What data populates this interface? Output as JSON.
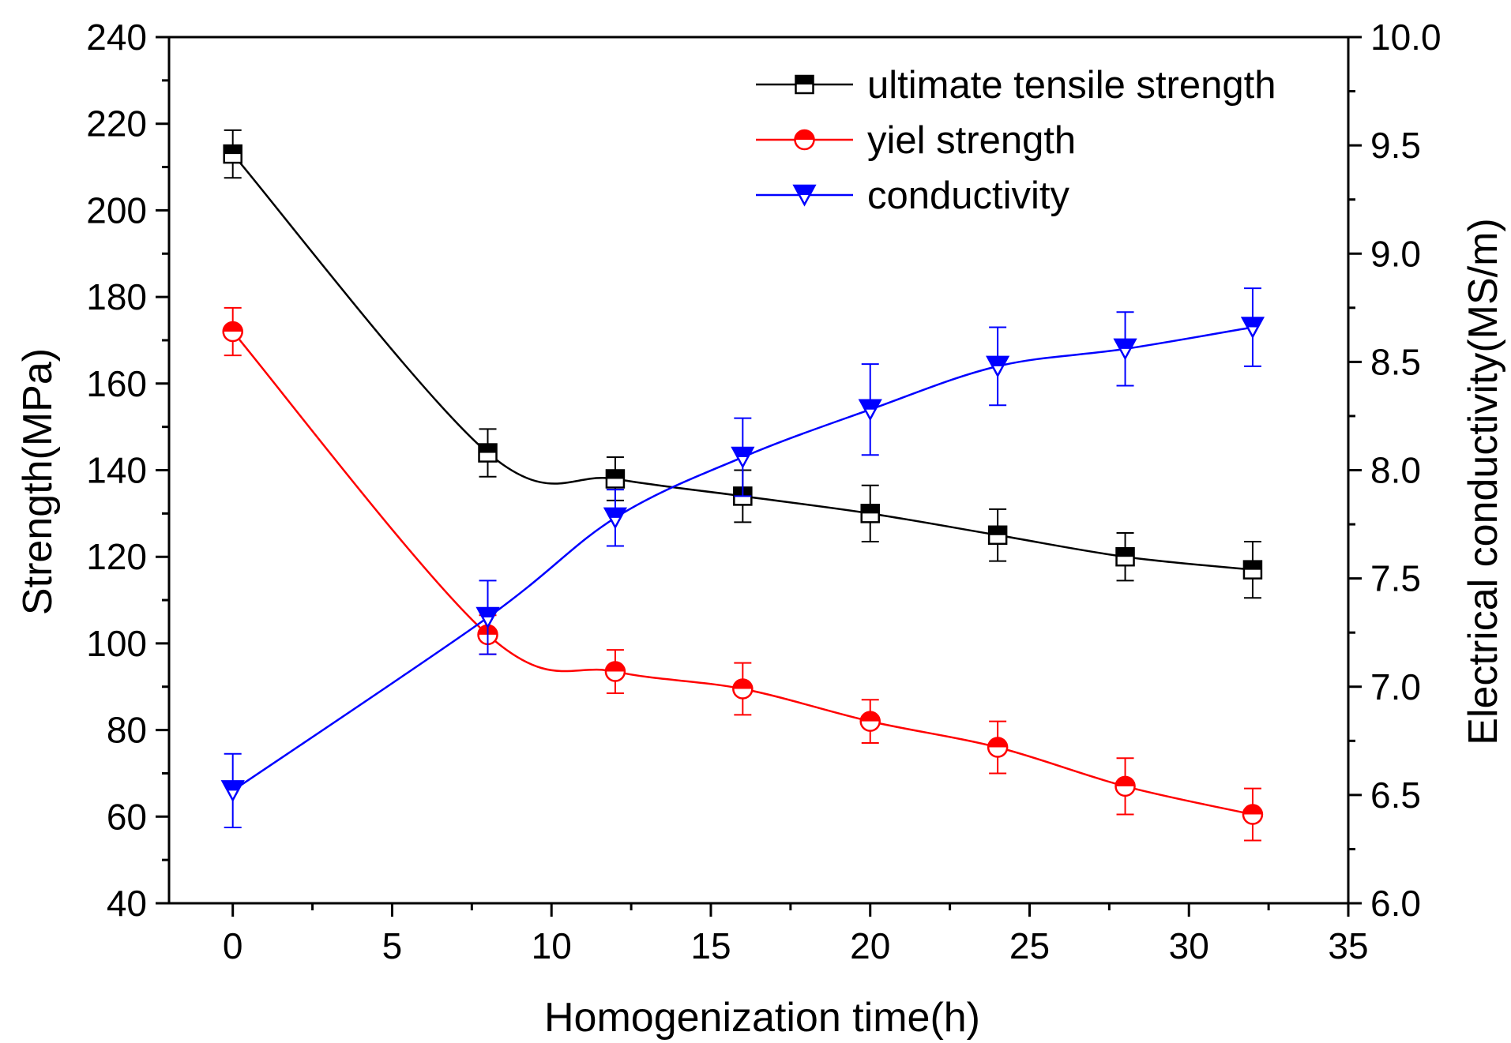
{
  "chart_data": {
    "type": "line",
    "title": "",
    "xlabel": "Homogenization time(h)",
    "ylabel": "Strength(MPa)",
    "y2label": "Electrical conductivity(MS/m)",
    "xlim": [
      -2,
      35
    ],
    "ylim": [
      40,
      240
    ],
    "y2lim": [
      6.0,
      10.0
    ],
    "x_ticks": [
      0,
      5,
      10,
      15,
      20,
      25,
      30,
      35
    ],
    "y_ticks": [
      40,
      60,
      80,
      100,
      120,
      140,
      160,
      180,
      200,
      220,
      240
    ],
    "y2_ticks": [
      "6.0",
      "6.5",
      "7.0",
      "7.5",
      "8.0",
      "8.5",
      "9.0",
      "9.5",
      "10.0"
    ],
    "x_tick_labels": [
      "0",
      "5",
      "10",
      "15",
      "20",
      "25",
      "30",
      "35"
    ],
    "y_tick_labels": [
      "40",
      "60",
      "80",
      "100",
      "120",
      "140",
      "160",
      "180",
      "200",
      "220",
      "240"
    ],
    "legend_position": "top-right",
    "grid": false,
    "series": [
      {
        "name": "ultimate tensile strength",
        "axis": "left",
        "color": "#000000",
        "marker": "square",
        "x": [
          0,
          8,
          12,
          16,
          20,
          24,
          28,
          32
        ],
        "values": [
          213,
          144,
          138,
          134,
          130,
          125,
          120,
          117
        ],
        "errors": [
          5.5,
          5.5,
          5,
          6,
          6.5,
          6,
          5.5,
          6.5
        ]
      },
      {
        "name": "yiel strength",
        "axis": "left",
        "color": "#ff0000",
        "marker": "circle",
        "x": [
          0,
          8,
          12,
          16,
          20,
          24,
          28,
          32
        ],
        "values": [
          172,
          102,
          93.5,
          89.5,
          82,
          76,
          67,
          60.5
        ],
        "errors": [
          5.5,
          4.5,
          5,
          6,
          5,
          6,
          6.5,
          6
        ]
      },
      {
        "name": "conductivity",
        "axis": "right",
        "color": "#0000ff",
        "marker": "triangle-down",
        "x": [
          0,
          8,
          12,
          16,
          20,
          24,
          28,
          32
        ],
        "values": [
          6.52,
          7.32,
          7.78,
          8.06,
          8.28,
          8.48,
          8.56,
          8.66
        ],
        "errors": [
          0.17,
          0.17,
          0.13,
          0.18,
          0.21,
          0.18,
          0.17,
          0.18
        ]
      }
    ]
  }
}
